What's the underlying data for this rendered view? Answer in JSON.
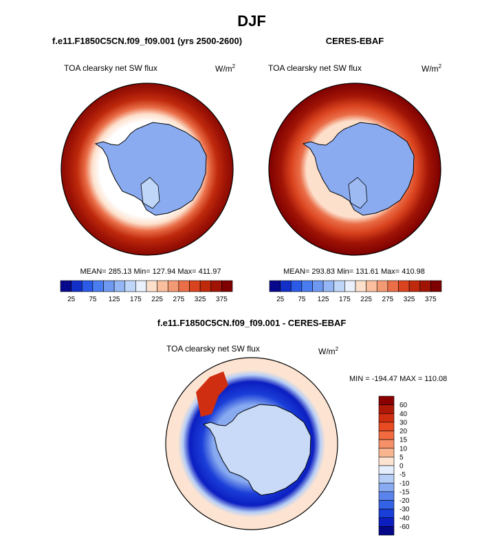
{
  "page": {
    "title": "DJF"
  },
  "chart_data": [
    {
      "type": "heatmap",
      "projection": "south-polar-stereographic",
      "title": "f.e11.F1850C5CN.f09_f09.001 (yrs 2500-2600)",
      "variable": "TOA clearsky net SW flux",
      "units_base": "W/m",
      "units_exp": "2",
      "stats": {
        "mean": 285.13,
        "min": 127.94,
        "max": 411.97
      },
      "stats_text": "MEAN= 285.13  Min= 127.94  Max= 411.97",
      "colorbar": {
        "orientation": "horizontal",
        "levels": [
          25,
          50,
          75,
          100,
          125,
          150,
          175,
          200,
          225,
          250,
          275,
          300,
          325,
          350,
          375
        ],
        "tick_labels": [
          "25",
          "75",
          "125",
          "175",
          "225",
          "275",
          "325",
          "375"
        ],
        "colors": [
          "#08088c",
          "#1230c8",
          "#2a5ae6",
          "#4a7ef0",
          "#6f98f0",
          "#95b6f4",
          "#c0d6f8",
          "#eaf0fc",
          "#fde0cc",
          "#f9bf9e",
          "#f29a74",
          "#ea6e48",
          "#d9431e",
          "#bf2a0c",
          "#a01406",
          "#7e0000"
        ]
      }
    },
    {
      "type": "heatmap",
      "projection": "south-polar-stereographic",
      "title": "CERES-EBAF",
      "variable": "TOA clearsky net SW flux",
      "units_base": "W/m",
      "units_exp": "2",
      "stats": {
        "mean": 293.83,
        "min": 131.61,
        "max": 410.98
      },
      "stats_text": "MEAN= 293.83  Min= 131.61  Max= 410.98",
      "colorbar": {
        "orientation": "horizontal",
        "levels": [
          25,
          50,
          75,
          100,
          125,
          150,
          175,
          200,
          225,
          250,
          275,
          300,
          325,
          350,
          375
        ],
        "tick_labels": [
          "25",
          "75",
          "125",
          "175",
          "225",
          "275",
          "325",
          "375"
        ],
        "colors": [
          "#08088c",
          "#1230c8",
          "#2a5ae6",
          "#4a7ef0",
          "#6f98f0",
          "#95b6f4",
          "#c0d6f8",
          "#eaf0fc",
          "#fde0cc",
          "#f9bf9e",
          "#f29a74",
          "#ea6e48",
          "#d9431e",
          "#bf2a0c",
          "#a01406",
          "#7e0000"
        ]
      }
    },
    {
      "type": "heatmap",
      "projection": "south-polar-stereographic",
      "title": "f.e11.F1850C5CN.f09_f09.001 - CERES-EBAF",
      "variable": "TOA clearsky net SW flux",
      "units_base": "W/m",
      "units_exp": "2",
      "stats": {
        "min": -194.47,
        "max": 110.08
      },
      "stats_text": "MIN = -194.47 MAX = 110.08",
      "colorbar": {
        "orientation": "vertical",
        "levels": [
          60,
          40,
          30,
          20,
          15,
          10,
          5,
          0,
          -5,
          -10,
          -15,
          -20,
          -30,
          -40,
          -60
        ],
        "tick_labels": [
          "60",
          "40",
          "30",
          "20",
          "15",
          "10",
          "5",
          "0",
          "-5",
          "-10",
          "-15",
          "-20",
          "-30",
          "-40",
          "-60"
        ],
        "colors": [
          "#8a0000",
          "#b01808",
          "#d02e10",
          "#e84a22",
          "#f26a40",
          "#f69068",
          "#f9b490",
          "#fde4d2",
          "#e4eefc",
          "#b6cef6",
          "#88aaf0",
          "#5a84ec",
          "#3462e4",
          "#1a3ed8",
          "#0c1ec0",
          "#06088a"
        ]
      }
    }
  ]
}
